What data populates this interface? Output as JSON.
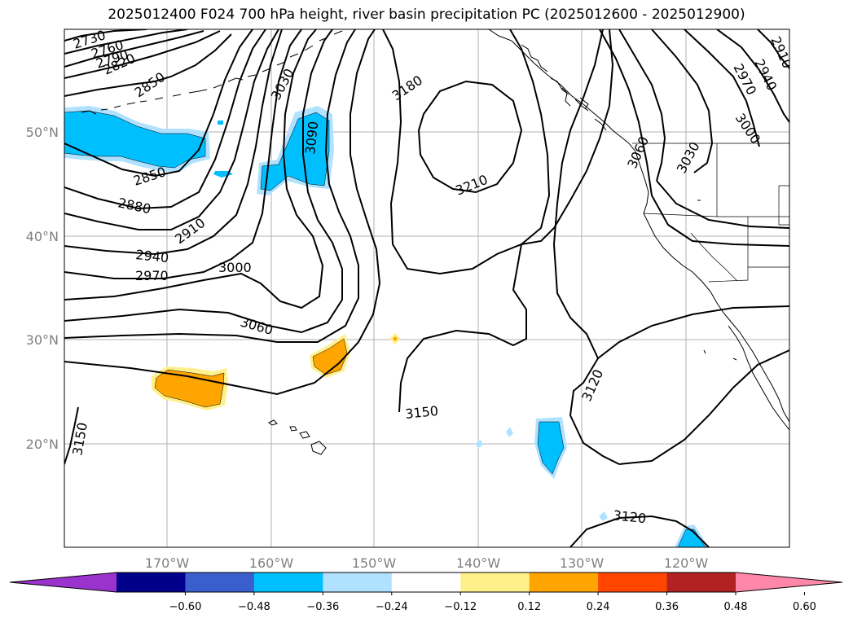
{
  "title": "2025012400 F024 700 hPa height, river basin precipitation PC (2025012600 - 2025012900)",
  "lat_labels": [
    "50°N",
    "40°N",
    "30°N",
    "20°N"
  ],
  "lon_labels": [
    "170°W",
    "160°W",
    "150°W",
    "140°W",
    "130°W",
    "120°W"
  ],
  "contour_labels": [
    "2730",
    "2760",
    "2790",
    "2820",
    "2850",
    "3030",
    "3090",
    "3180",
    "2850",
    "2880",
    "2910",
    "2940",
    "2970",
    "3000",
    "3060",
    "3210",
    "3150",
    "3120",
    "3120",
    "3150",
    "2940",
    "2970",
    "3000",
    "3030",
    "3060",
    "2910"
  ],
  "colorbar": {
    "ticks": [
      "−0.60",
      "−0.48",
      "−0.36",
      "−0.24",
      "−0.12",
      "0.12",
      "0.24",
      "0.36",
      "0.48",
      "0.60"
    ],
    "colors": [
      "#9933cc",
      "#00008b",
      "#3a5fcd",
      "#00bfff",
      "#b0e2ff",
      "#ffffff",
      "#fff08c",
      "#ffa500",
      "#ff4500",
      "#b22222",
      "#ff88aa"
    ]
  }
}
